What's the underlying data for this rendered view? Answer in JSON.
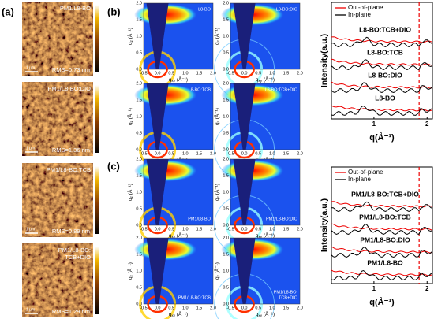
{
  "panel_labels": [
    "(a)",
    "(b)",
    "(c)"
  ],
  "afm": {
    "scale_bar": "1 μm",
    "images": [
      {
        "label": [
          "PM1/L8-BO"
        ],
        "rms": "RMS=0.73 nm"
      },
      {
        "label": [
          "PM1/L8-BO:DIO"
        ],
        "rms": "RMS=1.36 nm"
      },
      {
        "label": [
          "PM1/L8-BO:TCB"
        ],
        "rms": "RMS=0.89 nm"
      },
      {
        "label": [
          "PM1/L8-BO:",
          "TCB+DIO"
        ],
        "rms": "RMS=1.29 nm"
      }
    ]
  },
  "giwaxs": {
    "x_label": "q",
    "x_sub": "xy",
    "y_label": "q",
    "y_sub": "z",
    "unit": " (Å⁻¹)",
    "xticks": [
      "-0.5",
      "0.0",
      "0.5",
      "1.0",
      "1.5",
      "2.0"
    ],
    "yticks": [
      "0.0",
      "0.5",
      "1.0",
      "1.5",
      "2.0"
    ],
    "panels": [
      {
        "label": [
          "L8-BO"
        ]
      },
      {
        "label": [
          "L8-BO:DIO"
        ]
      },
      {
        "label": [
          "L8-BO:TCB"
        ]
      },
      {
        "label": [
          "L8-BO:TCB+DIO"
        ]
      },
      {
        "label": [
          "PM1/L8-BO"
        ]
      },
      {
        "label": [
          "PM1/L8-BO:DIO"
        ]
      },
      {
        "label": [
          "PM1/L8-BO:TCB"
        ]
      },
      {
        "label": [
          "PM1/L8-BO:",
          "TCB+DIO"
        ]
      }
    ]
  },
  "profiles": [
    {
      "legend": [
        "Out-of-plane",
        "In-plane"
      ],
      "labels": [
        "L8-BO:TCB+DIO",
        "L8-BO:TCB",
        "L8-BO:DIO",
        "L8-BO"
      ],
      "y_label": "Intensity(a.u.)",
      "x_label": "q(Å⁻¹)",
      "xticks": [
        "1",
        "2"
      ]
    },
    {
      "legend": [
        "Out-of-plane",
        "In-plane"
      ],
      "labels": [
        "PM1/L8-BO:TCB+DIO",
        "PM1/L8-BO:TCB",
        "PM1/L8-BO:DIO",
        "PM1/L8-BO"
      ],
      "y_label": "Intensity(a.u.)",
      "x_label": "q(Å⁻¹)",
      "xticks": [
        "1",
        "2"
      ]
    }
  ]
}
